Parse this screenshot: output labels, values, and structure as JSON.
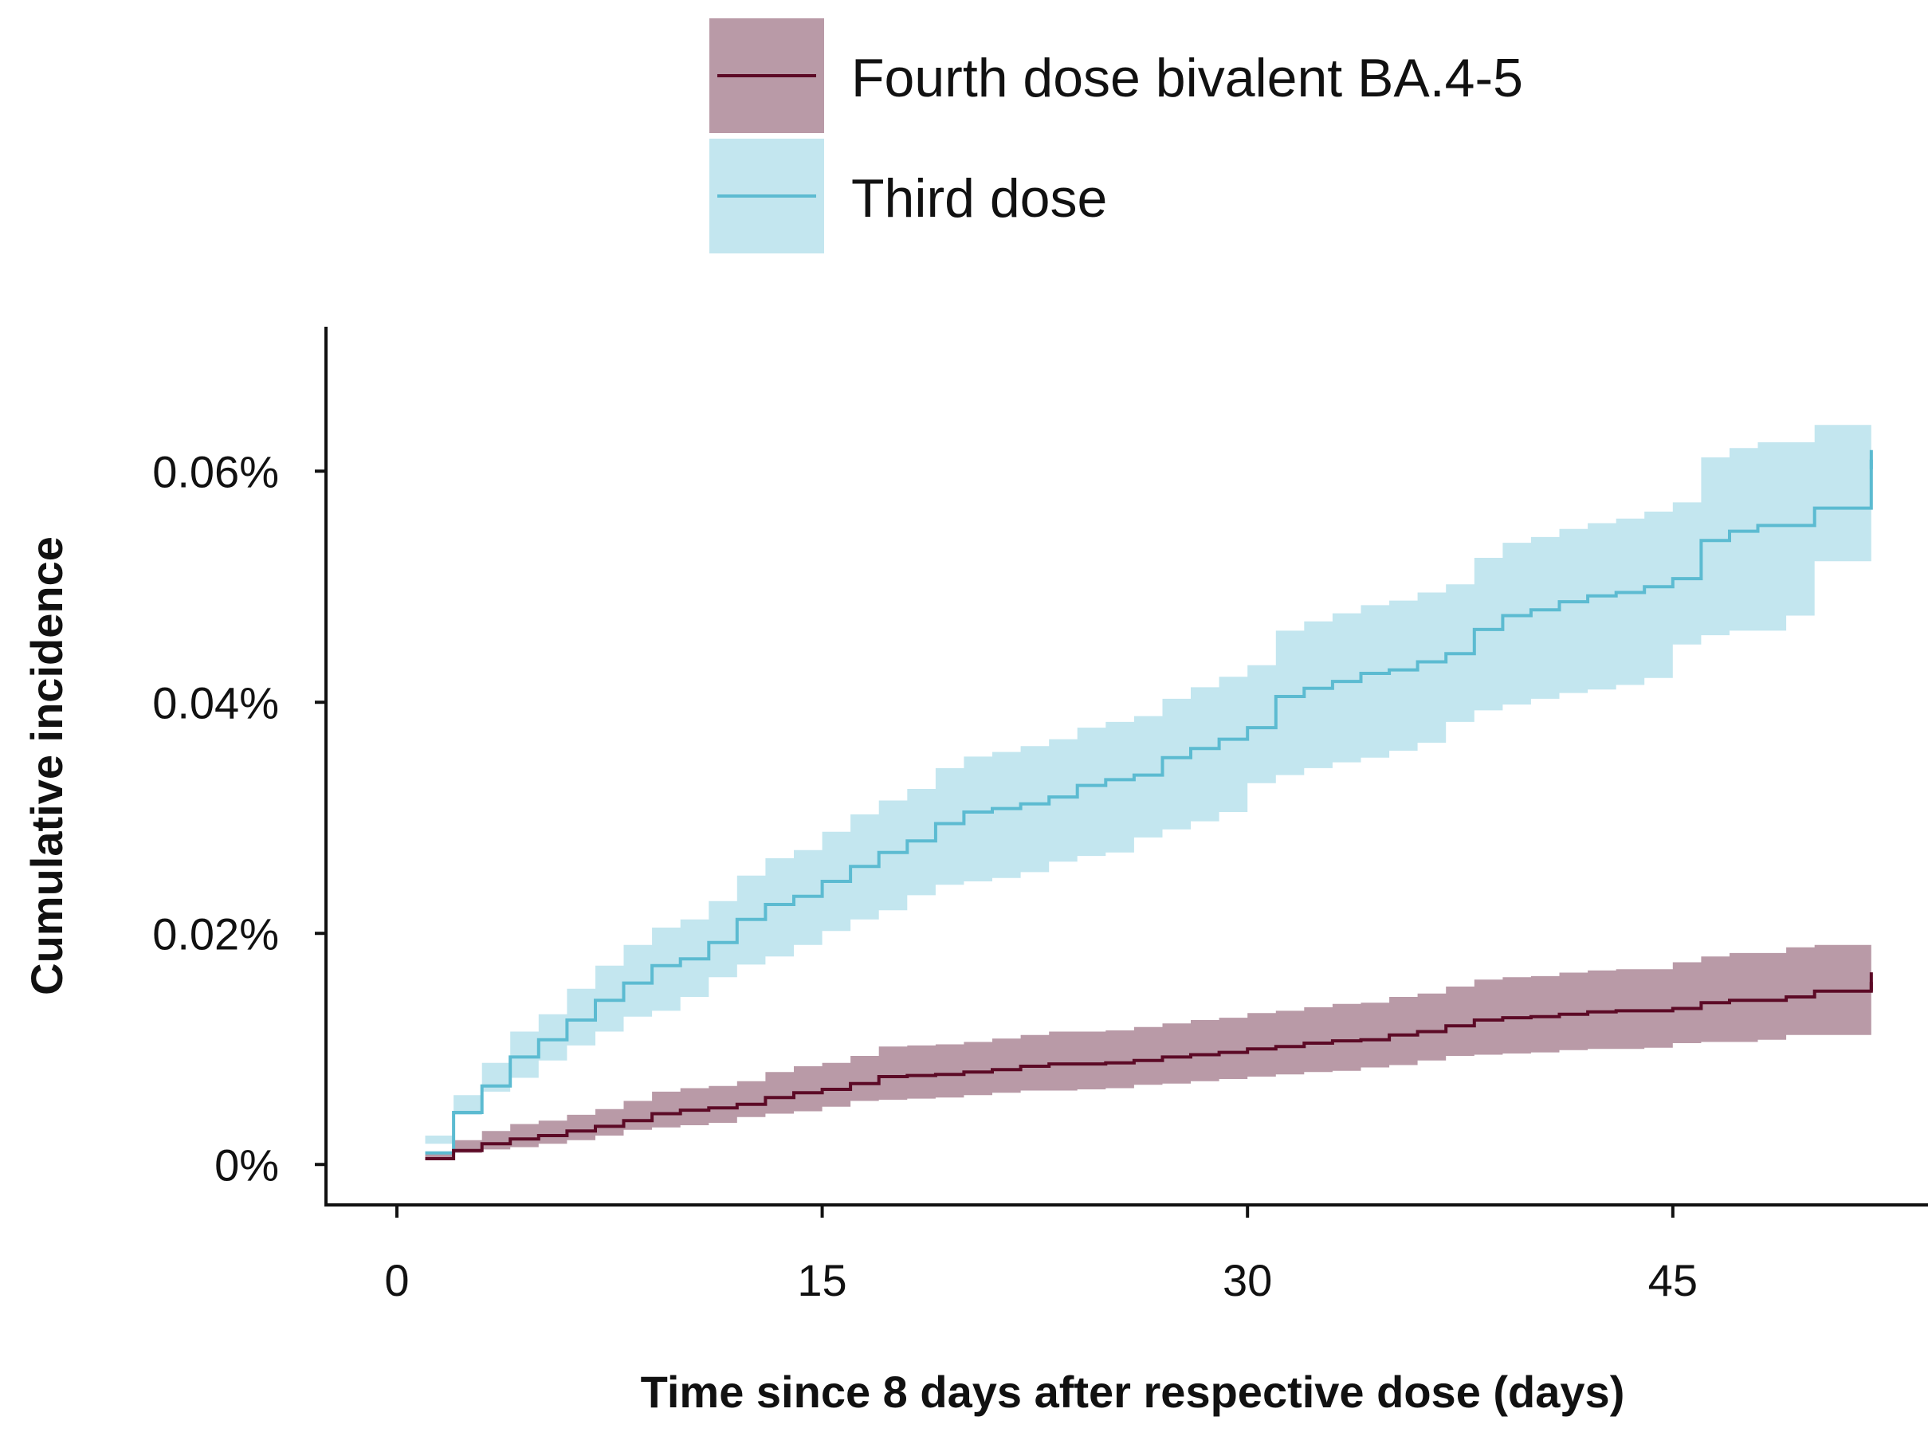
{
  "chart_data": {
    "type": "line",
    "title": "",
    "xlabel": "Time since 8 days after respective dose (days)",
    "ylabel": "Cumulative incidence",
    "xlim": [
      -2.5,
      54
    ],
    "ylim": [
      -0.0035,
      0.0725
    ],
    "x_ticks": [
      0,
      15,
      30,
      45
    ],
    "x_tick_labels": [
      "0",
      "15",
      "30",
      "45"
    ],
    "y_ticks": [
      0,
      0.02,
      0.04,
      0.06
    ],
    "y_tick_labels": [
      "0%",
      "0.02%",
      "0.04%",
      "0.06%"
    ],
    "y_unit": "%",
    "step": true,
    "confidence_bands": true,
    "grid": false,
    "legend_position": "top-center",
    "series": [
      {
        "name": "Fourth dose bivalent BA.4-5",
        "line_color": "#5c0a26",
        "band_color": "#b99aa7",
        "x": [
          1,
          2,
          3,
          4,
          5,
          6,
          7,
          8,
          9,
          10,
          11,
          12,
          13,
          14,
          15,
          16,
          17,
          18,
          19,
          20,
          21,
          22,
          23,
          24,
          25,
          26,
          27,
          28,
          29,
          30,
          31,
          32,
          33,
          34,
          35,
          36,
          37,
          38,
          39,
          40,
          41,
          42,
          43,
          44,
          45,
          46,
          47,
          48,
          49,
          50,
          52
        ],
        "y": [
          0.0005,
          0.0012,
          0.0018,
          0.0022,
          0.0025,
          0.0029,
          0.0033,
          0.0038,
          0.0044,
          0.0047,
          0.0049,
          0.0052,
          0.0058,
          0.0062,
          0.0065,
          0.007,
          0.0076,
          0.0077,
          0.0078,
          0.008,
          0.0082,
          0.0085,
          0.0087,
          0.0087,
          0.0088,
          0.009,
          0.0093,
          0.0095,
          0.0097,
          0.01,
          0.0102,
          0.0105,
          0.0107,
          0.0108,
          0.0112,
          0.0115,
          0.012,
          0.0125,
          0.0127,
          0.0128,
          0.013,
          0.0132,
          0.0133,
          0.0133,
          0.0135,
          0.014,
          0.0142,
          0.0142,
          0.0145,
          0.015,
          0.0158
        ],
        "lower": [
          0.0,
          0.0006,
          0.001,
          0.0013,
          0.0015,
          0.0018,
          0.0021,
          0.0025,
          0.003,
          0.0032,
          0.0034,
          0.0036,
          0.0041,
          0.0044,
          0.0046,
          0.005,
          0.0055,
          0.0056,
          0.0057,
          0.0058,
          0.006,
          0.0062,
          0.0064,
          0.0064,
          0.0065,
          0.0066,
          0.0069,
          0.007,
          0.0072,
          0.0074,
          0.0076,
          0.0078,
          0.008,
          0.0081,
          0.0084,
          0.0086,
          0.009,
          0.0094,
          0.0095,
          0.0096,
          0.0097,
          0.0099,
          0.01,
          0.01,
          0.0101,
          0.0105,
          0.0106,
          0.0106,
          0.0108,
          0.0112,
          0.0112
        ],
        "upper": [
          0.001,
          0.0021,
          0.0029,
          0.0035,
          0.0038,
          0.0043,
          0.0048,
          0.0055,
          0.0063,
          0.0066,
          0.0068,
          0.0072,
          0.008,
          0.0085,
          0.0088,
          0.0094,
          0.0102,
          0.0103,
          0.0104,
          0.0106,
          0.0109,
          0.0112,
          0.0115,
          0.0115,
          0.0116,
          0.0119,
          0.0122,
          0.0125,
          0.0127,
          0.0131,
          0.0133,
          0.0136,
          0.0139,
          0.014,
          0.0145,
          0.0148,
          0.0154,
          0.016,
          0.0162,
          0.0163,
          0.0166,
          0.0168,
          0.0169,
          0.0169,
          0.0175,
          0.018,
          0.0183,
          0.0183,
          0.0188,
          0.019,
          0.019
        ]
      },
      {
        "name": "Third dose",
        "line_color": "#5cbbd1",
        "band_color": "#c3e6ef",
        "x": [
          1,
          2,
          3,
          4,
          5,
          6,
          7,
          8,
          9,
          10,
          11,
          12,
          13,
          14,
          15,
          16,
          17,
          18,
          19,
          20,
          21,
          22,
          23,
          24,
          25,
          26,
          27,
          28,
          29,
          30,
          31,
          32,
          33,
          34,
          35,
          36,
          37,
          38,
          39,
          40,
          41,
          42,
          43,
          44,
          45,
          46,
          47,
          48,
          49,
          50,
          52
        ],
        "y": [
          0.001,
          0.0045,
          0.0068,
          0.0093,
          0.0108,
          0.0125,
          0.0142,
          0.0157,
          0.0172,
          0.0178,
          0.0192,
          0.0212,
          0.0225,
          0.0232,
          0.0245,
          0.0258,
          0.027,
          0.028,
          0.0295,
          0.0305,
          0.0308,
          0.0312,
          0.0318,
          0.0328,
          0.0333,
          0.0337,
          0.0352,
          0.036,
          0.0368,
          0.0378,
          0.0405,
          0.0412,
          0.0418,
          0.0425,
          0.0428,
          0.0435,
          0.0442,
          0.0463,
          0.0475,
          0.048,
          0.0487,
          0.0492,
          0.0495,
          0.05,
          0.0507,
          0.054,
          0.0548,
          0.0553,
          0.0553,
          0.0568,
          0.061
        ],
        "lower": [
          0.0005,
          0.0025,
          0.0043,
          0.0063,
          0.0075,
          0.009,
          0.0103,
          0.0115,
          0.0128,
          0.0133,
          0.0145,
          0.0162,
          0.0173,
          0.018,
          0.019,
          0.0202,
          0.0212,
          0.022,
          0.0233,
          0.0242,
          0.0245,
          0.0248,
          0.0253,
          0.0262,
          0.0267,
          0.027,
          0.0283,
          0.029,
          0.0297,
          0.0305,
          0.033,
          0.0337,
          0.0343,
          0.0348,
          0.0352,
          0.0358,
          0.0365,
          0.0383,
          0.0393,
          0.0398,
          0.0403,
          0.0408,
          0.0411,
          0.0415,
          0.0421,
          0.045,
          0.0458,
          0.0462,
          0.0462,
          0.0475,
          0.0522
        ],
        "upper": [
          0.0018,
          0.006,
          0.0088,
          0.0115,
          0.013,
          0.0152,
          0.0172,
          0.019,
          0.0205,
          0.0212,
          0.0228,
          0.025,
          0.0265,
          0.0272,
          0.0288,
          0.0303,
          0.0315,
          0.0325,
          0.0343,
          0.0353,
          0.0357,
          0.0362,
          0.0368,
          0.0378,
          0.0383,
          0.0388,
          0.0403,
          0.0413,
          0.0422,
          0.0432,
          0.0462,
          0.047,
          0.0477,
          0.0484,
          0.0488,
          0.0495,
          0.0502,
          0.0525,
          0.0538,
          0.0543,
          0.055,
          0.0555,
          0.0559,
          0.0565,
          0.0573,
          0.0612,
          0.062,
          0.0625,
          0.0625,
          0.064,
          0.069
        ]
      }
    ]
  }
}
